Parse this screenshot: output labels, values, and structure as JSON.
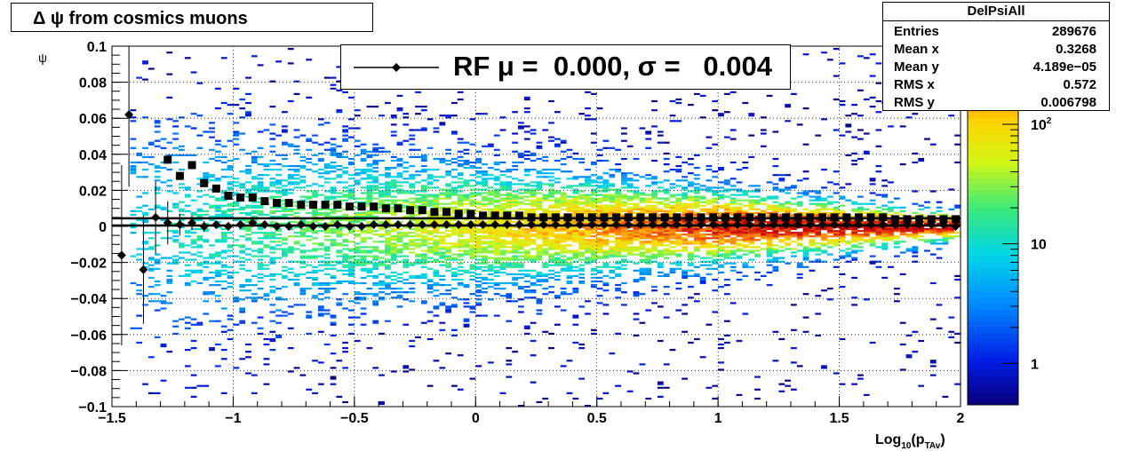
{
  "title": "Δ ψ from cosmics muons",
  "legend": {
    "label": "RF μ =  0.000, σ =   0.004"
  },
  "stats": {
    "name": "DelPsiAll",
    "rows": [
      {
        "key": "Entries",
        "value": "289676"
      },
      {
        "key": "Mean x",
        "value": "0.3268"
      },
      {
        "key": "Mean y",
        "value": "4.189e−05"
      },
      {
        "key": "RMS x",
        "value": "0.572"
      },
      {
        "key": "RMS y",
        "value": "0.006798"
      }
    ]
  },
  "chart_data": {
    "type": "heatmap",
    "xlabel": "Log10(pTAv)",
    "ylabel": "ψ",
    "xlim": [
      -1.5,
      2
    ],
    "ylim": [
      -0.1,
      0.1
    ],
    "x_ticks": [
      "−1.5",
      "−1",
      "−0.5",
      "0",
      "0.5",
      "1",
      "1.5",
      "2"
    ],
    "y_ticks": [
      "−0.1",
      "−0.08",
      "−0.06",
      "−0.04",
      "−0.02",
      "0",
      "0.02",
      "0.04",
      "0.06",
      "0.08",
      "0.1"
    ],
    "z_scale": "log",
    "z_ticks": [
      "1",
      "10",
      "10^2"
    ],
    "grid": true,
    "colorbar": "right",
    "series": [
      {
        "name": "RF",
        "marker": "diamond",
        "x": [
          -1.46,
          -1.43,
          -1.37,
          -1.32,
          -1.27,
          -1.22,
          -1.17,
          -1.12,
          -1.07,
          -1.02,
          -0.97,
          -0.92,
          -0.87,
          -0.82,
          -0.77,
          -0.72,
          -0.67,
          -0.62,
          -0.57,
          -0.52,
          -0.47,
          -0.42,
          -0.37,
          -0.32,
          -0.27,
          -0.22,
          -0.17,
          -0.12,
          -0.07,
          -0.02,
          0.03,
          0.08,
          0.13,
          0.18,
          0.23,
          0.28,
          0.33,
          0.38,
          0.43,
          0.48,
          0.53,
          0.58,
          0.63,
          0.68,
          0.73,
          0.78,
          0.83,
          0.88,
          0.93,
          0.98,
          1.03,
          1.08,
          1.13,
          1.18,
          1.23,
          1.28,
          1.33,
          1.38,
          1.43,
          1.48,
          1.53,
          1.58,
          1.63,
          1.68,
          1.73,
          1.78,
          1.83,
          1.88,
          1.93,
          1.98
        ],
        "y": [
          -0.016,
          0.062,
          -0.024,
          0.005,
          0.002,
          0.001,
          0.002,
          0,
          0.001,
          0,
          0.001,
          0.002,
          0.001,
          0,
          0,
          0.001,
          0,
          0,
          0.001,
          0,
          0,
          0.001,
          0.001,
          0.001,
          0.001,
          0.001,
          0.001,
          0.001,
          0.001,
          0.001,
          0.001,
          0.001,
          0.001,
          0.001,
          0.001,
          0.001,
          0.001,
          0.001,
          0.001,
          0.001,
          0.001,
          0.001,
          0.001,
          0.001,
          0.001,
          0.001,
          0.001,
          0.001,
          0.001,
          0.001,
          0.001,
          0.001,
          0.001,
          0.001,
          0.001,
          0.001,
          0.001,
          0.001,
          0.001,
          0.001,
          0.001,
          0.001,
          0.001,
          0.001,
          0.001,
          0.001,
          0.001,
          0.001,
          0.001,
          0
        ],
        "err": [
          0.05,
          0.04,
          0.03,
          0.02,
          0.012,
          0.006,
          0.004,
          0.003,
          0.002,
          0.002,
          0.002,
          0.002,
          0.001,
          0.001,
          0.001,
          0.001,
          0.001,
          0.001,
          0.001,
          0.001,
          0.001,
          0.001,
          0.001,
          0.001,
          0.001,
          0.001,
          0.001,
          0.001,
          0.001,
          0.001,
          0.001,
          0.001,
          0.001,
          0.001,
          0.001,
          0.001,
          0.001,
          0.001,
          0.001,
          0.001,
          0.001,
          0.001,
          0.001,
          0.001,
          0.001,
          0.001,
          0.001,
          0.001,
          0.001,
          0.001,
          0.001,
          0.001,
          0.001,
          0.001,
          0.001,
          0.001,
          0.001,
          0.001,
          0.001,
          0.001,
          0.001,
          0.001,
          0.001,
          0.001,
          0.001,
          0.001,
          0.001,
          0.001,
          0.001,
          0.001
        ]
      },
      {
        "marker": "square",
        "x": [
          -1.27,
          -1.22,
          -1.17,
          -1.12,
          -1.07,
          -1.02,
          -0.97,
          -0.92,
          -0.87,
          -0.82,
          -0.77,
          -0.72,
          -0.67,
          -0.62,
          -0.57,
          -0.52,
          -0.47,
          -0.42,
          -0.37,
          -0.32,
          -0.27,
          -0.22,
          -0.17,
          -0.12,
          -0.07,
          -0.02,
          0.03,
          0.08,
          0.13,
          0.18,
          0.23,
          0.28,
          0.33,
          0.38,
          0.43,
          0.48,
          0.53,
          0.58,
          0.63,
          0.68,
          0.73,
          0.78,
          0.83,
          0.88,
          0.93,
          0.98,
          1.03,
          1.08,
          1.13,
          1.18,
          1.23,
          1.28,
          1.33,
          1.38,
          1.43,
          1.48,
          1.53,
          1.58,
          1.63,
          1.68,
          1.73,
          1.78,
          1.83,
          1.88,
          1.93,
          1.98
        ],
        "y": [
          0.037,
          0.028,
          0.034,
          0.024,
          0.021,
          0.017,
          0.016,
          0.016,
          0.014,
          0.013,
          0.013,
          0.012,
          0.012,
          0.012,
          0.012,
          0.011,
          0.011,
          0.011,
          0.01,
          0.01,
          0.009,
          0.009,
          0.008,
          0.008,
          0.007,
          0.007,
          0.006,
          0.006,
          0.006,
          0.006,
          0.005,
          0.005,
          0.005,
          0.005,
          0.005,
          0.005,
          0.005,
          0.005,
          0.005,
          0.005,
          0.005,
          0.005,
          0.005,
          0.005,
          0.005,
          0.005,
          0.005,
          0.005,
          0.005,
          0.005,
          0.005,
          0.005,
          0.005,
          0.005,
          0.005,
          0.005,
          0.005,
          0.005,
          0.005,
          0.005,
          0.004,
          0.004,
          0.004,
          0.004,
          0.004,
          0.004
        ]
      }
    ],
    "fit_lines": [
      {
        "y": 0.0045,
        "x": [
          -1.5,
          2
        ]
      },
      {
        "y": 0.0005,
        "x": [
          -1.5,
          2
        ]
      }
    ]
  }
}
